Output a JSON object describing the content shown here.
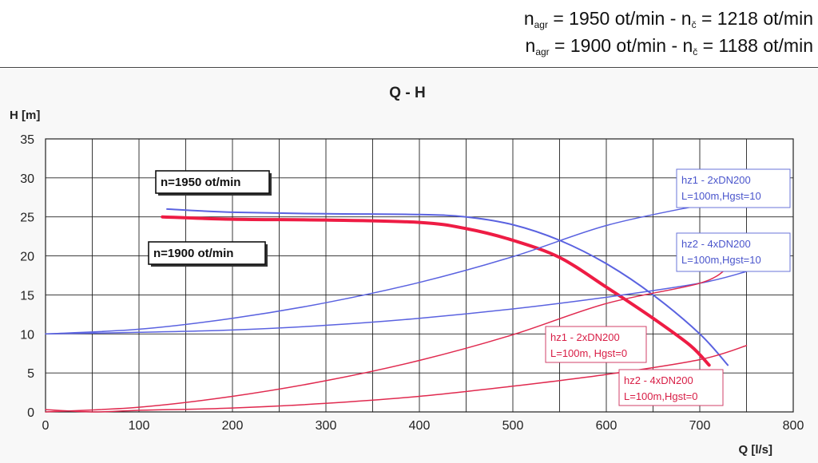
{
  "header": {
    "line1": {
      "n1": "n",
      "sub1": "agr",
      "mid": " = 1950 ot/min - n",
      "sub2": "č",
      "end": " = 1218 ot/min"
    },
    "line2": {
      "n1": "n",
      "sub1": "agr",
      "mid": " = 1900 ot/min - n",
      "sub2": "č",
      "end": " = 1188 ot/min"
    }
  },
  "chart_data": {
    "type": "line",
    "title": "Q - H",
    "xlabel": "Q [l/s]",
    "ylabel": "H [m]",
    "xlim": [
      0,
      800
    ],
    "ylim": [
      0,
      35
    ],
    "xticks": [
      0,
      100,
      200,
      300,
      400,
      500,
      600,
      700,
      800
    ],
    "yticks": [
      0,
      5,
      10,
      15,
      20,
      25,
      30,
      35
    ],
    "grid": true,
    "colors": {
      "blue": "#5a62e0",
      "red": "#e02a4f",
      "red_thick": "#ee1c44"
    },
    "series": [
      {
        "id": "pump1950",
        "color": "blue",
        "width": 2,
        "x": [
          130,
          200,
          300,
          400,
          450,
          500,
          550,
          600,
          650,
          700,
          730
        ],
        "y": [
          26,
          25.6,
          25.4,
          25.3,
          25.0,
          24.0,
          22.0,
          19.0,
          15.0,
          10.0,
          6.0
        ]
      },
      {
        "id": "pump1900",
        "color": "red_thick",
        "width": 4,
        "x": [
          125,
          200,
          300,
          400,
          450,
          500,
          550,
          600,
          650,
          690,
          710
        ],
        "y": [
          25,
          24.7,
          24.6,
          24.3,
          23.5,
          22.0,
          19.8,
          16.0,
          12.0,
          8.5,
          6.0
        ]
      },
      {
        "id": "hz1_hgst10",
        "color": "blue",
        "width": 1.5,
        "x": [
          0,
          100,
          200,
          300,
          400,
          500,
          600,
          700
        ],
        "y": [
          10,
          10.6,
          12.0,
          14.0,
          16.6,
          19.9,
          23.9,
          26.5
        ]
      },
      {
        "id": "hz2_hgst10",
        "color": "blue",
        "width": 1.5,
        "x": [
          0,
          100,
          200,
          300,
          400,
          500,
          600,
          700,
          750
        ],
        "y": [
          10,
          10.2,
          10.5,
          11.1,
          12.0,
          13.2,
          14.7,
          16.5,
          18.0
        ]
      },
      {
        "id": "hz1_hgst0",
        "color": "red",
        "width": 1.5,
        "x": [
          0,
          100,
          200,
          300,
          400,
          500,
          600,
          700,
          730
        ],
        "y": [
          0,
          0.6,
          2.0,
          4.0,
          6.6,
          9.9,
          13.9,
          16.5,
          18.5
        ]
      },
      {
        "id": "hz2_hgst0",
        "color": "red",
        "width": 1.5,
        "x": [
          0,
          50,
          100,
          200,
          300,
          400,
          500,
          600,
          700,
          750
        ],
        "y": [
          0.3,
          0.0,
          0.2,
          0.5,
          1.1,
          2.0,
          3.3,
          4.8,
          6.7,
          8.5
        ]
      }
    ],
    "annotations": [
      {
        "text": "n=1950 ot/min",
        "style": "black"
      },
      {
        "text": "n=1900 ot/min",
        "style": "black"
      },
      {
        "lines": [
          "hz1 - 2xDN200",
          "L=100m,Hgst=10"
        ],
        "style": "blue"
      },
      {
        "lines": [
          "hz2 - 4xDN200",
          "L=100m,Hgst=10"
        ],
        "style": "blue"
      },
      {
        "lines": [
          "hz1 - 2xDN200",
          "L=100m, Hgst=0"
        ],
        "style": "red"
      },
      {
        "lines": [
          "hz2 - 4xDN200",
          "L=100m,Hgst=0"
        ],
        "style": "red"
      }
    ]
  }
}
